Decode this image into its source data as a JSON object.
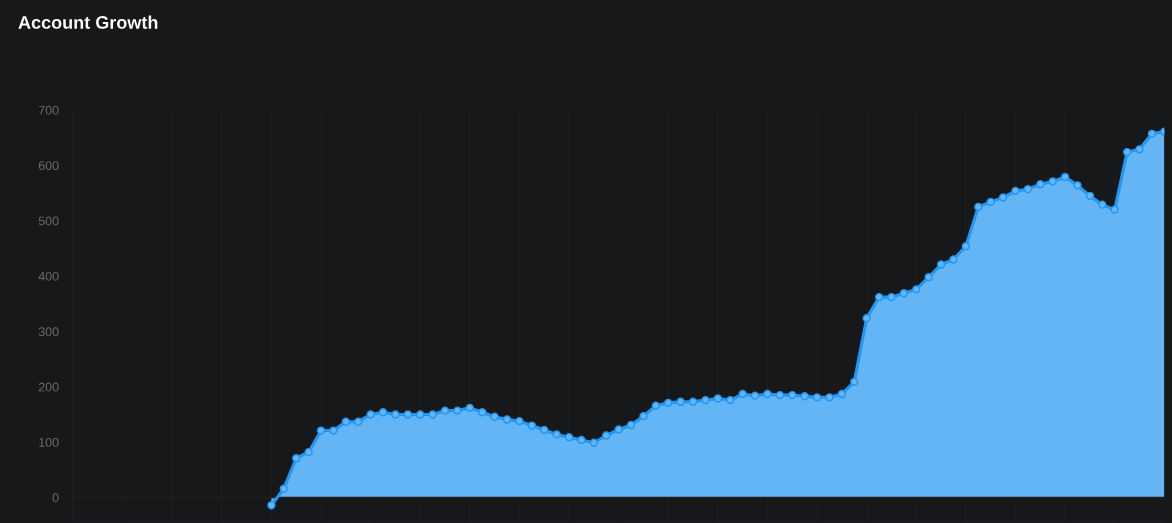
{
  "chart_data": {
    "type": "area",
    "title": "Account Growth",
    "categories": [
      null,
      null,
      null,
      null,
      null,
      null,
      null,
      null,
      null,
      null,
      null,
      null,
      null,
      null,
      null,
      null,
      null,
      null,
      null,
      null,
      null,
      null,
      null,
      null,
      null,
      null,
      null,
      null,
      null,
      null,
      null,
      null,
      null,
      null,
      null,
      null,
      null,
      null,
      null,
      null,
      null,
      null,
      null,
      null,
      null,
      null,
      null,
      null,
      null,
      null,
      null,
      null,
      null,
      null,
      null,
      null,
      null,
      null,
      null,
      null,
      null,
      null,
      null,
      null,
      null,
      null,
      null,
      null,
      null,
      null,
      null,
      null,
      null,
      null,
      null,
      null,
      null,
      null,
      null,
      null,
      null,
      null,
      null,
      null,
      null,
      null,
      null,
      null,
      null
    ],
    "series": [
      {
        "color": "#64b5f6",
        "values": [
          null,
          null,
          null,
          null,
          null,
          null,
          null,
          null,
          null,
          null,
          null,
          null,
          null,
          null,
          null,
          null,
          -14,
          16,
          71,
          82,
          121,
          121,
          137,
          137,
          150,
          154,
          150,
          150,
          150,
          150,
          157,
          157,
          162,
          154,
          146,
          141,
          138,
          130,
          122,
          114,
          109,
          104,
          99,
          112,
          123,
          131,
          147,
          166,
          171,
          173,
          173,
          176,
          179,
          176,
          187,
          184,
          187,
          185,
          185,
          183,
          181,
          181,
          187,
          209,
          324,
          362,
          362,
          369,
          376,
          398,
          421,
          430,
          454,
          525,
          534,
          542,
          554,
          557,
          566,
          571,
          579,
          564,
          545,
          529,
          520,
          624,
          629,
          657,
          661
        ]
      }
    ],
    "ylim": [
      -46,
      700
    ],
    "yticks": [
      0,
      100,
      200,
      300,
      400,
      500,
      600,
      700
    ],
    "ref_lines": [
      {
        "axis": "y",
        "value": 0,
        "color": "#1e1f22"
      }
    ],
    "grid": "x",
    "tick_labels": "y",
    "marker": "circle",
    "line_style": "solid"
  }
}
